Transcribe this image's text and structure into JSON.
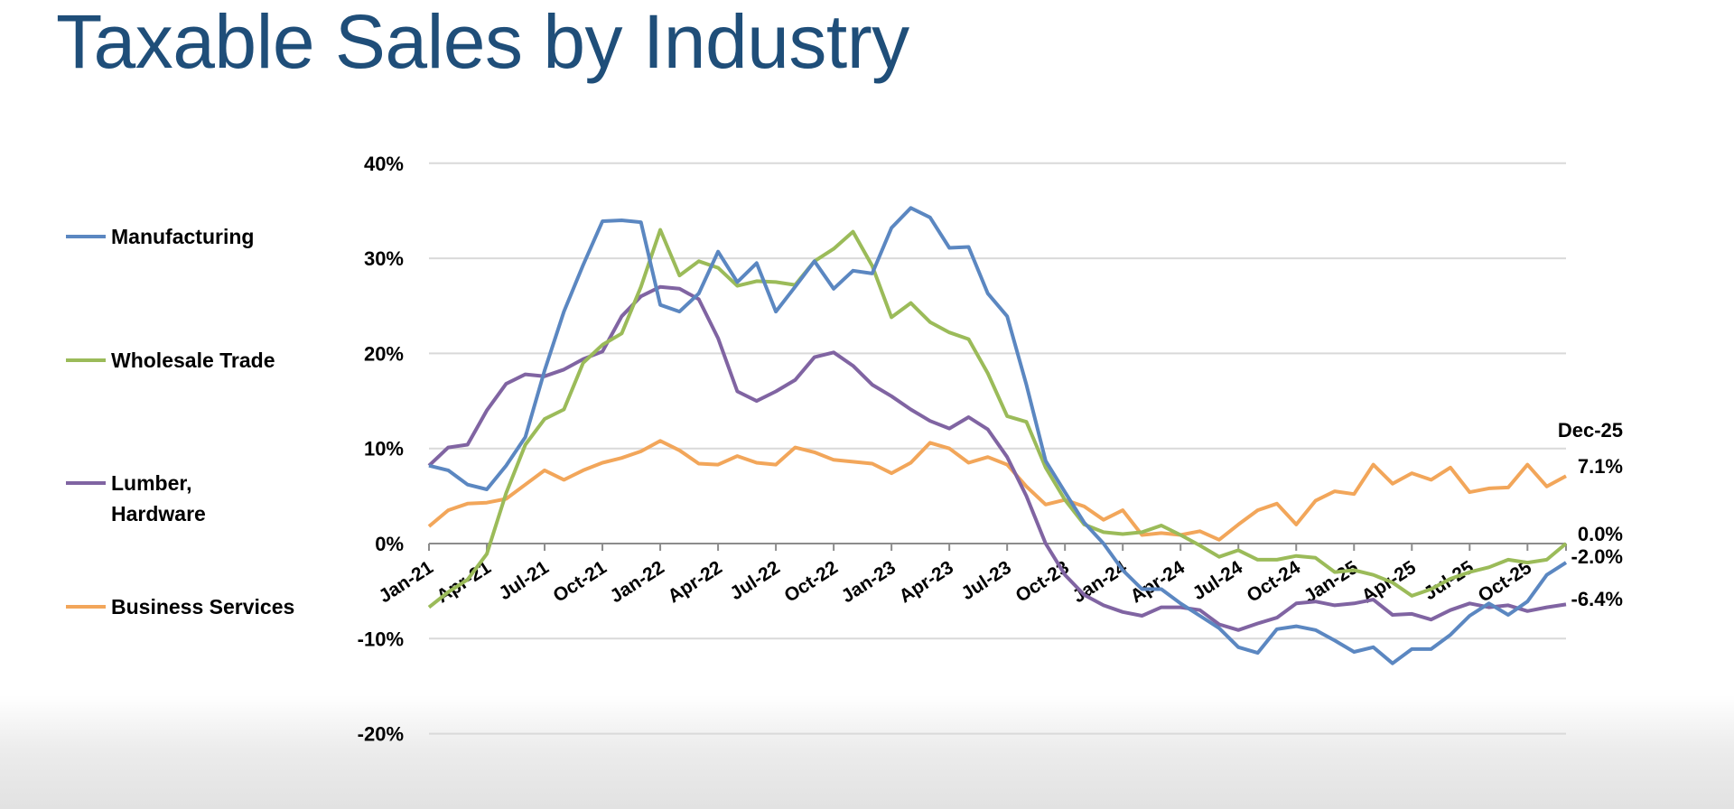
{
  "title": "Taxable Sales by Industry",
  "chart_data": {
    "type": "line",
    "title": "Taxable Sales by Industry",
    "xlabel": "",
    "ylabel": "",
    "ylim": [
      -20,
      40
    ],
    "yticks": [
      "-20%",
      "-10%",
      "0%",
      "10%",
      "20%",
      "30%",
      "40%"
    ],
    "ytick_values": [
      -20,
      -10,
      0,
      10,
      20,
      30,
      40
    ],
    "xtick_labels": [
      "Jan-21",
      "Apr-21",
      "Jul-21",
      "Oct-21",
      "Jan-22",
      "Apr-22",
      "Jul-22",
      "Oct-22",
      "Jan-23",
      "Apr-23",
      "Jul-23",
      "Oct-23",
      "Jan-24",
      "Apr-24",
      "Jul-24",
      "Oct-24",
      "Jan-25",
      "Apr-25",
      "Jul-25",
      "Oct-25"
    ],
    "x_start": "Jan-21",
    "x_end": "Dec-25",
    "n_months": 60,
    "grid": true,
    "legend_position": "left",
    "end_annotation": "Dec-25",
    "series": [
      {
        "name": "Manufacturing",
        "color": "#5b87c1",
        "end_label": "-2.0%",
        "values": [
          8.2,
          7.7,
          6.2,
          5.7,
          8.2,
          11.2,
          18.2,
          24.4,
          29.3,
          33.9,
          34.0,
          33.8,
          25.1,
          24.4,
          26.3,
          30.7,
          27.5,
          29.5,
          24.4,
          27.0,
          29.7,
          26.8,
          28.7,
          28.4,
          33.2,
          35.3,
          34.3,
          31.1,
          31.2,
          26.3,
          23.9,
          16.7,
          8.7,
          5.4,
          2.2,
          0.0,
          -2.8,
          -4.8,
          -4.8,
          -6.3,
          -7.6,
          -8.9,
          -10.9,
          -11.5,
          -9.0,
          -8.7,
          -9.1,
          -10.2,
          -11.4,
          -10.9,
          -12.6,
          -11.1,
          -11.1,
          -9.6,
          -7.6,
          -6.3,
          -7.5,
          -6.1,
          -3.3,
          -2.0
        ]
      },
      {
        "name": "Wholesale Trade",
        "color": "#9bbb59",
        "end_label": "0.0%",
        "values": [
          -6.7,
          -5.1,
          -3.8,
          -1.1,
          5.3,
          10.4,
          13.1,
          14.1,
          19.0,
          20.9,
          22.1,
          27.0,
          33.0,
          28.2,
          29.7,
          29.0,
          27.1,
          27.6,
          27.5,
          27.2,
          29.7,
          31.0,
          32.8,
          29.2,
          23.8,
          25.3,
          23.3,
          22.2,
          21.5,
          17.9,
          13.4,
          12.8,
          8.0,
          4.6,
          2.0,
          1.2,
          1.0,
          1.2,
          1.9,
          0.9,
          -0.2,
          -1.4,
          -0.7,
          -1.7,
          -1.7,
          -1.3,
          -1.5,
          -3.0,
          -2.8,
          -3.3,
          -4.1,
          -5.5,
          -4.8,
          -3.7,
          -3.0,
          -2.5,
          -1.7,
          -2.0,
          -1.7,
          0.0
        ]
      },
      {
        "name": "Lumber, Hardware",
        "label_lines": [
          "Lumber,",
          "Hardware"
        ],
        "color": "#8064a2",
        "end_label": "-6.4%",
        "values": [
          8.2,
          10.1,
          10.4,
          14.0,
          16.8,
          17.8,
          17.6,
          18.3,
          19.4,
          20.2,
          23.9,
          26.0,
          27.0,
          26.8,
          25.7,
          21.6,
          16.0,
          15.0,
          16.0,
          17.2,
          19.6,
          20.1,
          18.7,
          16.7,
          15.5,
          14.1,
          12.9,
          12.1,
          13.3,
          12.0,
          9.1,
          5.0,
          0.0,
          -3.3,
          -5.4,
          -6.5,
          -7.2,
          -7.6,
          -6.7,
          -6.7,
          -7.0,
          -8.5,
          -9.1,
          -8.4,
          -7.8,
          -6.3,
          -6.1,
          -6.5,
          -6.3,
          -5.9,
          -7.5,
          -7.4,
          -8.0,
          -7.0,
          -6.3,
          -6.7,
          -6.5,
          -7.1,
          -6.7,
          -6.4
        ]
      },
      {
        "name": "Business Services",
        "color": "#f2a65a",
        "end_label": "7.1%",
        "values": [
          1.8,
          3.5,
          4.2,
          4.3,
          4.7,
          6.2,
          7.7,
          6.7,
          7.7,
          8.5,
          9.0,
          9.7,
          10.8,
          9.8,
          8.4,
          8.3,
          9.2,
          8.5,
          8.3,
          10.1,
          9.6,
          8.8,
          8.6,
          8.4,
          7.4,
          8.5,
          10.6,
          10.0,
          8.5,
          9.1,
          8.3,
          6.0,
          4.1,
          4.6,
          3.9,
          2.5,
          3.5,
          0.9,
          1.1,
          0.9,
          1.3,
          0.4,
          2.0,
          3.5,
          4.2,
          2.0,
          4.5,
          5.5,
          5.2,
          8.3,
          6.3,
          7.4,
          6.7,
          8.0,
          5.4,
          5.8,
          5.9,
          8.3,
          6.0,
          7.1
        ]
      }
    ]
  }
}
